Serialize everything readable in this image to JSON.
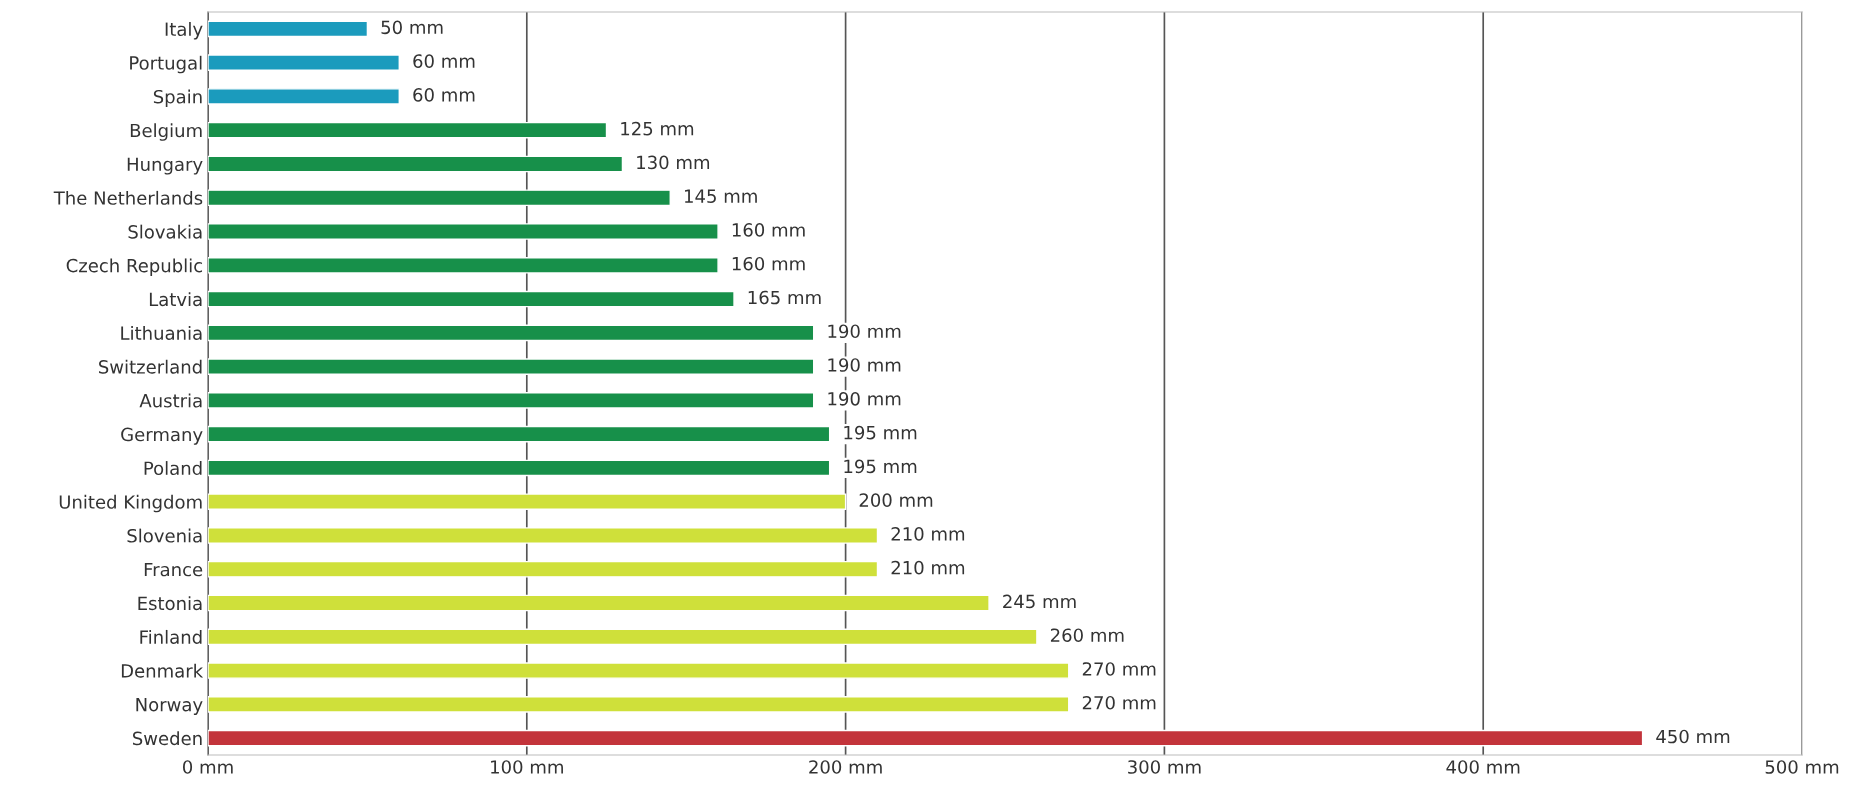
{
  "chart_data": {
    "type": "bar",
    "orientation": "horizontal",
    "categories": [
      "Italy",
      "Portugal",
      "Spain",
      "Belgium",
      "Hungary",
      "The Netherlands",
      "Slovakia",
      "Czech Republic",
      "Latvia",
      "Lithuania",
      "Switzerland",
      "Austria",
      "Germany",
      "Poland",
      "United Kingdom",
      "Slovenia",
      "France",
      "Estonia",
      "Finland",
      "Denmark",
      "Norway",
      "Sweden"
    ],
    "values": [
      50,
      60,
      60,
      125,
      130,
      145,
      160,
      160,
      165,
      190,
      190,
      190,
      195,
      195,
      200,
      210,
      210,
      245,
      260,
      270,
      270,
      450
    ],
    "colors": [
      "#1b9bbd",
      "#1b9bbd",
      "#1b9bbd",
      "#17904a",
      "#17904a",
      "#17904a",
      "#17904a",
      "#17904a",
      "#17904a",
      "#17904a",
      "#17904a",
      "#17904a",
      "#17904a",
      "#17904a",
      "#cfe03a",
      "#cfe03a",
      "#cfe03a",
      "#cfe03a",
      "#cfe03a",
      "#cfe03a",
      "#cfe03a",
      "#c3343b"
    ],
    "value_labels": [
      "50 mm",
      "60 mm",
      "60 mm",
      "125 mm",
      "130 mm",
      "145 mm",
      "160 mm",
      "160 mm",
      "165 mm",
      "190 mm",
      "190 mm",
      "190 mm",
      "195 mm",
      "195 mm",
      "200 mm",
      "210 mm",
      "210 mm",
      "245 mm",
      "260 mm",
      "270 mm",
      "270 mm",
      "450 mm"
    ],
    "xlim": [
      0,
      500
    ],
    "xticks": [
      {
        "value": 0,
        "label": "0 mm"
      },
      {
        "value": 100,
        "label": "100 mm"
      },
      {
        "value": 200,
        "label": "200 mm"
      },
      {
        "value": 300,
        "label": "300 mm"
      },
      {
        "value": 400,
        "label": "400 mm"
      },
      {
        "value": 500,
        "label": "500 mm"
      }
    ],
    "grid": "x",
    "legend": false
  }
}
